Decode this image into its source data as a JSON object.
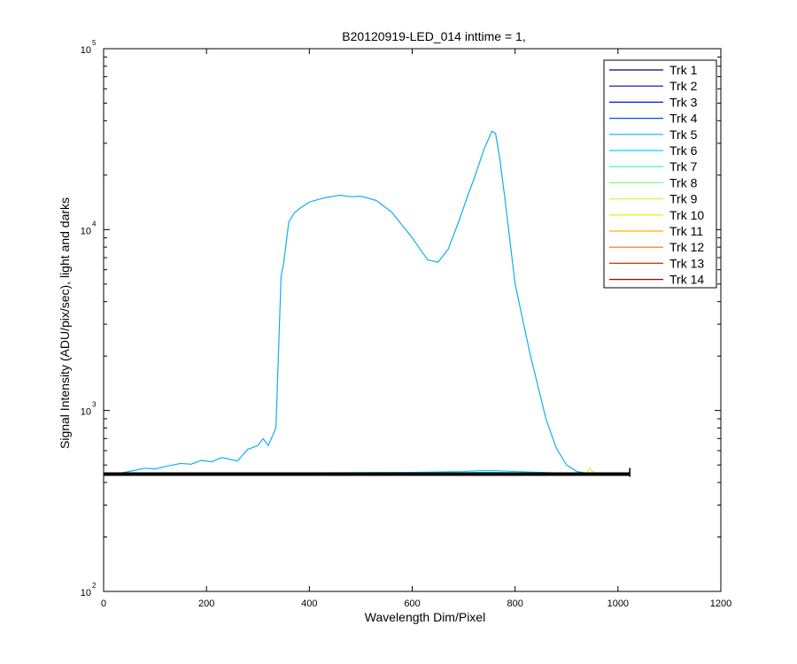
{
  "chart_data": {
    "type": "line",
    "title": "B20120919-LED_014 inttime = 1,",
    "xlabel": "Wavelength Dim/Pixel",
    "ylabel": "Signal Intensity (ADU/pix/sec), light and darks",
    "xlim": [
      0,
      1200
    ],
    "ylim": [
      100,
      100000
    ],
    "yscale": "log",
    "x_ticks": [
      0,
      200,
      400,
      600,
      800,
      1000,
      1200
    ],
    "x_tick_labels": [
      "0",
      "200",
      "400",
      "600",
      "800",
      "1000",
      "1200"
    ],
    "y_ticks": [
      100,
      1000,
      10000,
      100000
    ],
    "y_tick_labels": [
      {
        "base": "10",
        "exp": "2"
      },
      {
        "base": "10",
        "exp": "3"
      },
      {
        "base": "10",
        "exp": "4"
      },
      {
        "base": "10",
        "exp": "5"
      }
    ],
    "grid": false,
    "legend_position": "top-right",
    "series": [
      {
        "name": "Trk 1",
        "color": "#00008F",
        "x": [
          0,
          1023
        ],
        "y": [
          448,
          448
        ]
      },
      {
        "name": "Trk 2",
        "color": "#0000CF",
        "x": [
          0,
          1023
        ],
        "y": [
          448,
          448
        ]
      },
      {
        "name": "Trk 3",
        "color": "#0010FF",
        "x": [
          0,
          1023
        ],
        "y": [
          448,
          448
        ]
      },
      {
        "name": "Trk 4",
        "color": "#0050FF",
        "x": [
          0,
          1023
        ],
        "y": [
          448,
          448
        ]
      },
      {
        "name": "Trk 5",
        "color": "#0FAFEF",
        "x": [
          0,
          30,
          50,
          80,
          100,
          120,
          150,
          170,
          190,
          210,
          230,
          260,
          280,
          300,
          310,
          320,
          335,
          345,
          350,
          360,
          370,
          380,
          400,
          430,
          460,
          480,
          500,
          530,
          560,
          600,
          630,
          650,
          670,
          690,
          710,
          720,
          740,
          755,
          762,
          770,
          780,
          800,
          830,
          860,
          880,
          900,
          920,
          940
        ],
        "y": [
          450,
          450,
          460,
          480,
          475,
          490,
          510,
          505,
          530,
          520,
          550,
          525,
          610,
          640,
          700,
          640,
          800,
          5500,
          6500,
          11000,
          12300,
          13000,
          14200,
          15000,
          15500,
          15200,
          15300,
          14500,
          12500,
          9000,
          6800,
          6600,
          7800,
          11000,
          16000,
          19000,
          28000,
          35000,
          34000,
          25000,
          15000,
          5000,
          2000,
          900,
          620,
          500,
          460,
          450
        ]
      },
      {
        "name": "Trk 6",
        "color": "#00D8FF",
        "x": [
          0,
          400,
          600,
          700,
          730,
          760,
          800,
          850,
          900,
          1023
        ],
        "y": [
          450,
          452,
          455,
          460,
          465,
          465,
          460,
          455,
          450,
          448
        ]
      },
      {
        "name": "Trk 7",
        "color": "#30F0D8",
        "x": [
          0,
          400,
          650,
          750,
          850,
          1023
        ],
        "y": [
          449,
          450,
          452,
          455,
          451,
          448
        ]
      },
      {
        "name": "Trk 8",
        "color": "#80FF80",
        "x": [
          0,
          1023
        ],
        "y": [
          448,
          448
        ]
      },
      {
        "name": "Trk 9",
        "color": "#C0FF40",
        "x": [
          0,
          930,
          940,
          945,
          950,
          960,
          1023
        ],
        "y": [
          448,
          448,
          455,
          480,
          460,
          448,
          448
        ]
      },
      {
        "name": "Trk 10",
        "color": "#E8E800",
        "x": [
          0,
          1023
        ],
        "y": [
          448,
          448
        ]
      },
      {
        "name": "Trk 11",
        "color": "#FFB000",
        "x": [
          0,
          1023
        ],
        "y": [
          448,
          448
        ]
      },
      {
        "name": "Trk 12",
        "color": "#FF7000",
        "x": [
          0,
          1023
        ],
        "y": [
          448,
          448
        ]
      },
      {
        "name": "Trk 13",
        "color": "#FF2000",
        "x": [
          0,
          1023
        ],
        "y": [
          448,
          448
        ]
      },
      {
        "name": "Trk 14",
        "color": "#B00000",
        "x": [
          0,
          1023
        ],
        "y": [
          448,
          448
        ]
      },
      {
        "name": "",
        "color": "#000000",
        "x": [
          0,
          1023
        ],
        "y": [
          445,
          445
        ]
      }
    ]
  }
}
